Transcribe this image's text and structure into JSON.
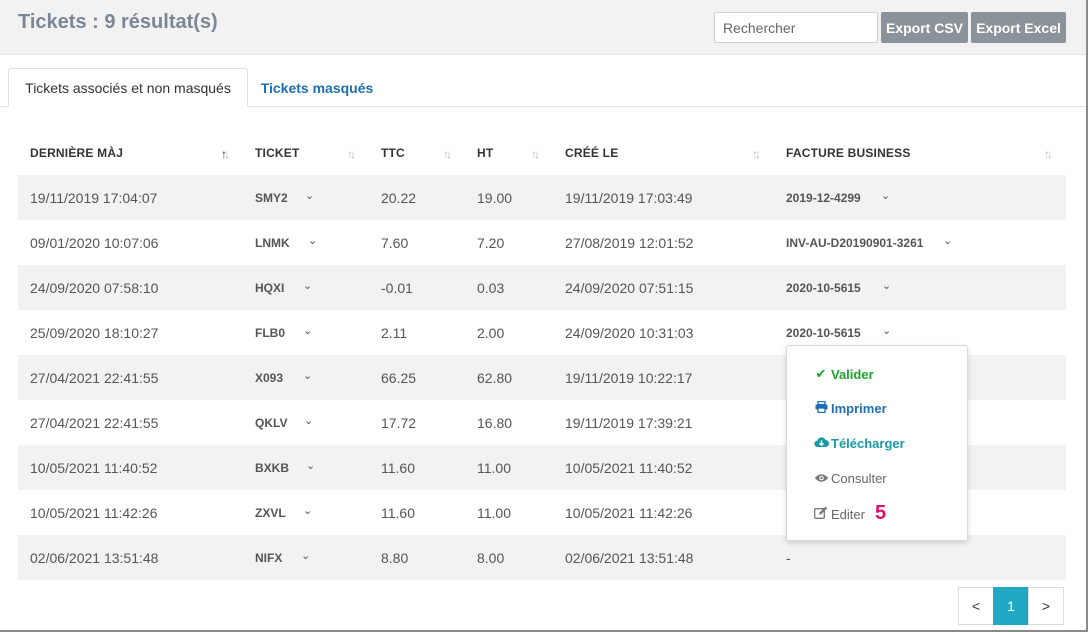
{
  "header": {
    "title": "Tickets : 9 résultat(s)",
    "search_placeholder": "Rechercher",
    "export_csv": "Export CSV",
    "export_excel": "Export Excel"
  },
  "tabs": [
    {
      "label": "Tickets associés et non masqués",
      "active": true
    },
    {
      "label": "Tickets masqués",
      "active": false
    }
  ],
  "table": {
    "columns": [
      "DERNIÈRE MÀJ",
      "TICKET",
      "TTC",
      "HT",
      "CRÉÉ LE",
      "FACTURE BUSINESS"
    ],
    "rows": [
      {
        "maj": "19/11/2019 17:04:07",
        "ticket": "SMY2",
        "ttc": "20.22",
        "ht": "19.00",
        "cree": "19/11/2019 17:03:49",
        "facture": "2019-12-4299"
      },
      {
        "maj": "09/01/2020 10:07:06",
        "ticket": "LNMK",
        "ttc": "7.60",
        "ht": "7.20",
        "cree": "27/08/2019 12:01:52",
        "facture": "INV-AU-D20190901-3261"
      },
      {
        "maj": "24/09/2020 07:58:10",
        "ticket": "HQXI",
        "ttc": "-0.01",
        "ht": "0.03",
        "cree": "24/09/2020 07:51:15",
        "facture": "2020-10-5615"
      },
      {
        "maj": "25/09/2020 18:10:27",
        "ticket": "FLB0",
        "ttc": "2.11",
        "ht": "2.00",
        "cree": "24/09/2020 10:31:03",
        "facture": "2020-10-5615"
      },
      {
        "maj": "27/04/2021 22:41:55",
        "ticket": "X093",
        "ttc": "66.25",
        "ht": "62.80",
        "cree": "19/11/2019 10:22:17",
        "facture": ""
      },
      {
        "maj": "27/04/2021 22:41:55",
        "ticket": "QKLV",
        "ttc": "17.72",
        "ht": "16.80",
        "cree": "19/11/2019 17:39:21",
        "facture": ""
      },
      {
        "maj": "10/05/2021 11:40:52",
        "ticket": "BXKB",
        "ttc": "11.60",
        "ht": "11.00",
        "cree": "10/05/2021 11:40:52",
        "facture": ""
      },
      {
        "maj": "10/05/2021 11:42:26",
        "ticket": "ZXVL",
        "ttc": "11.60",
        "ht": "11.00",
        "cree": "10/05/2021 11:42:26",
        "facture": ""
      },
      {
        "maj": "02/06/2021 13:51:48",
        "ticket": "NIFX",
        "ttc": "8.80",
        "ht": "8.00",
        "cree": "02/06/2021 13:51:48",
        "facture": "-"
      }
    ]
  },
  "dropdown": {
    "valider": "Valider",
    "imprimer": "Imprimer",
    "telecharger": "Télécharger",
    "consulter": "Consulter",
    "editer": "Editer",
    "step": "5"
  },
  "pagination": {
    "prev": "<",
    "current": "1",
    "next": ">"
  },
  "colors": {
    "accent": "#22a7c4",
    "link": "#1f6fb2",
    "success": "#1aa52a",
    "badge": "#e0106f",
    "button": "#8c9299"
  }
}
